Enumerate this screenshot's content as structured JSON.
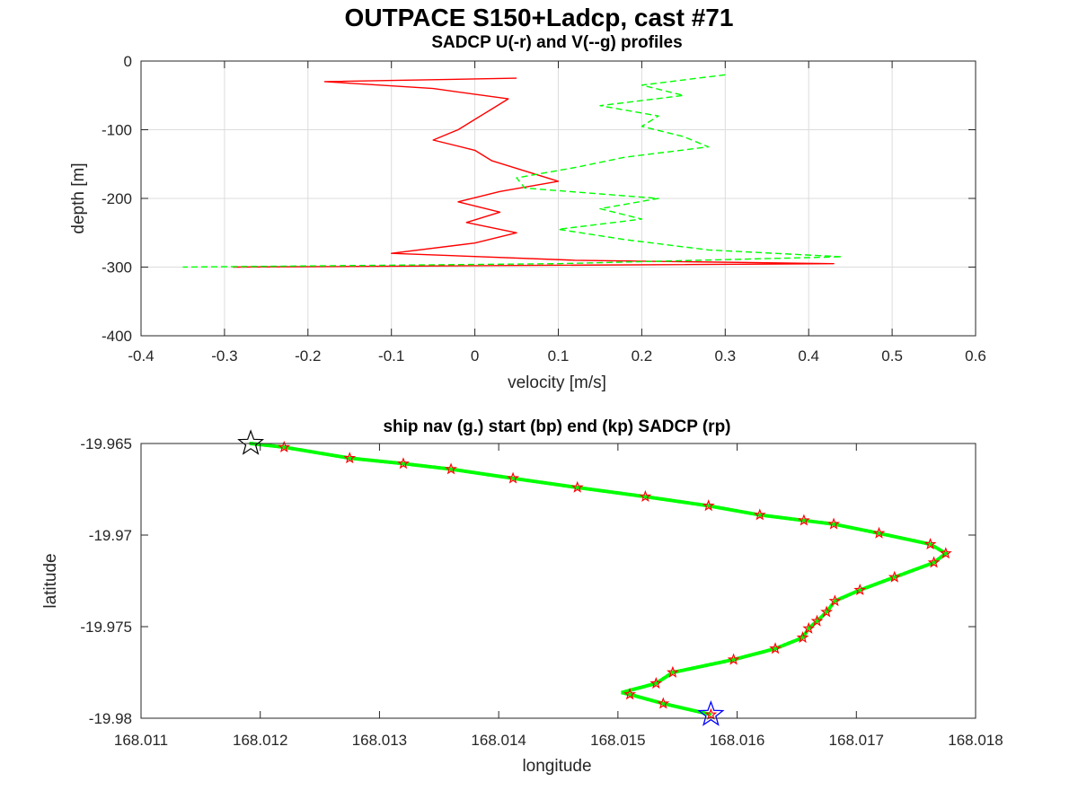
{
  "figure": {
    "title": "OUTPACE S150+Ladcp, cast #71"
  },
  "chart_data": [
    {
      "type": "line",
      "title": "SADCP U(-r) and V(--g) profiles",
      "xlabel": "velocity [m/s]",
      "ylabel": "depth [m]",
      "xlim": [
        -0.4,
        0.6
      ],
      "ylim": [
        -400,
        0
      ],
      "xticks": [
        -0.4,
        -0.3,
        -0.2,
        -0.1,
        0,
        0.1,
        0.2,
        0.3,
        0.4,
        0.5,
        0.6
      ],
      "yticks": [
        -400,
        -300,
        -200,
        -100,
        0
      ],
      "grid": true,
      "series": [
        {
          "name": "U",
          "color": "#ff0000",
          "style": "solid",
          "depth": [
            -25,
            -30,
            -40,
            -55,
            -70,
            -85,
            -100,
            -115,
            -130,
            -145,
            -160,
            -175,
            -190,
            -205,
            -220,
            -235,
            -250,
            -265,
            -280,
            -290,
            -295,
            -300
          ],
          "values": [
            0.05,
            -0.18,
            -0.05,
            0.04,
            0.02,
            0.0,
            -0.02,
            -0.05,
            0.0,
            0.02,
            0.06,
            0.1,
            0.03,
            -0.02,
            0.03,
            -0.01,
            0.05,
            0.0,
            -0.1,
            0.12,
            0.43,
            -0.29
          ]
        },
        {
          "name": "V",
          "color": "#00ff00",
          "style": "dashed",
          "depth": [
            -20,
            -35,
            -50,
            -65,
            -80,
            -95,
            -110,
            -125,
            -140,
            -155,
            -170,
            -185,
            -200,
            -215,
            -230,
            -245,
            -260,
            -275,
            -285,
            -295,
            -300
          ],
          "values": [
            0.3,
            0.2,
            0.25,
            0.15,
            0.22,
            0.2,
            0.25,
            0.28,
            0.18,
            0.12,
            0.05,
            0.06,
            0.22,
            0.15,
            0.2,
            0.1,
            0.18,
            0.28,
            0.44,
            0.1,
            -0.35
          ]
        }
      ]
    },
    {
      "type": "scatter",
      "title": "ship nav (g.) start (bp) end (kp) SADCP (rp)",
      "xlabel": "longitude",
      "ylabel": "latitude",
      "xlim": [
        168.011,
        168.018
      ],
      "ylim": [
        -19.98,
        -19.965
      ],
      "xticks": [
        "168.011",
        "168.012",
        "168.013",
        "168.014",
        "168.015",
        "168.016",
        "168.017",
        "168.018"
      ],
      "yticks": [
        "-19.98",
        "-19.975",
        "-19.97",
        "-19.965"
      ],
      "grid": false,
      "start": {
        "lon": 168.01578,
        "lat": -19.9798,
        "color": "#0000ff"
      },
      "end": {
        "lon": 168.01192,
        "lat": -19.965,
        "color": "#000000"
      },
      "ship_nav": {
        "color": "#00ff00",
        "lon": [
          168.01192,
          168.0122,
          168.01275,
          168.0132,
          168.0136,
          168.01412,
          168.01466,
          168.01523,
          168.01576,
          168.01619,
          168.01656,
          168.01681,
          168.01719,
          168.01762,
          168.01775,
          168.01765,
          168.01732,
          168.01703,
          168.01682,
          168.01675,
          168.01667,
          168.0166,
          168.01655,
          168.01632,
          168.01597,
          168.01546,
          168.01532,
          168.01503,
          168.0151,
          168.01538,
          168.01578
        ],
        "lat": [
          -19.965,
          -19.9652,
          -19.9658,
          -19.9661,
          -19.9664,
          -19.9669,
          -19.9674,
          -19.9679,
          -19.9684,
          -19.9689,
          -19.9692,
          -19.9694,
          -19.9699,
          -19.9705,
          -19.971,
          -19.9715,
          -19.9723,
          -19.973,
          -19.9736,
          -19.9742,
          -19.9747,
          -19.9751,
          -19.9756,
          -19.9762,
          -19.9768,
          -19.9775,
          -19.9781,
          -19.9786,
          -19.9787,
          -19.9792,
          -19.9798
        ]
      },
      "sadcp": {
        "color": "#ff0000",
        "lon": [
          168.0122,
          168.01275,
          168.0132,
          168.0136,
          168.01412,
          168.01466,
          168.01523,
          168.01576,
          168.01619,
          168.01656,
          168.01681,
          168.01719,
          168.01762,
          168.01775,
          168.01765,
          168.01732,
          168.01703,
          168.01682,
          168.01675,
          168.01667,
          168.0166,
          168.01655,
          168.01632,
          168.01597,
          168.01546,
          168.01532,
          168.0151,
          168.01538,
          168.01578
        ],
        "lat": [
          -19.9652,
          -19.9658,
          -19.9661,
          -19.9664,
          -19.9669,
          -19.9674,
          -19.9679,
          -19.9684,
          -19.9689,
          -19.9692,
          -19.9694,
          -19.9699,
          -19.9705,
          -19.971,
          -19.9715,
          -19.9723,
          -19.973,
          -19.9736,
          -19.9742,
          -19.9747,
          -19.9751,
          -19.9756,
          -19.9762,
          -19.9768,
          -19.9775,
          -19.9781,
          -19.9787,
          -19.9792,
          -19.9798
        ]
      }
    }
  ]
}
